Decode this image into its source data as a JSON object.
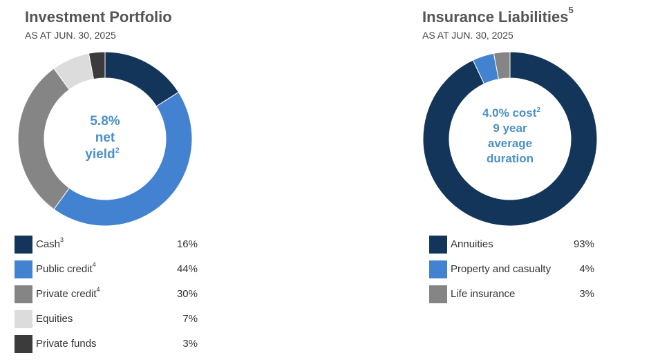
{
  "colors": {
    "dark_navy": "#13355a",
    "blue": "#4382d0",
    "gray": "#858585",
    "light_gray": "#dcdcdc",
    "charcoal": "#3b3b3b",
    "center_text": "#4a90c8",
    "title": "#555555"
  },
  "chart_data": [
    {
      "type": "pie",
      "title": "Investment Portfolio",
      "subtitle": "AS AT JUN. 30, 2025",
      "center_label": {
        "line1": "5.8%",
        "line2": "net",
        "line3": "yield",
        "line3_sup": "2"
      },
      "slices": [
        {
          "label": "Cash",
          "sup": "3",
          "value": 16,
          "display": "16%",
          "color": "#13355a"
        },
        {
          "label": "Public credit",
          "sup": "4",
          "value": 44,
          "display": "44%",
          "color": "#4382d0"
        },
        {
          "label": "Private credit",
          "sup": "4",
          "value": 30,
          "display": "30%",
          "color": "#858585"
        },
        {
          "label": "Equities",
          "sup": "",
          "value": 7,
          "display": "7%",
          "color": "#dcdcdc"
        },
        {
          "label": "Private funds",
          "sup": "",
          "value": 3,
          "display": "3%",
          "color": "#3b3b3b"
        }
      ]
    },
    {
      "type": "pie",
      "title": "Insurance Liabilities",
      "title_sup": "5",
      "subtitle": "AS AT JUN. 30, 2025",
      "center_label": {
        "line1": "4.0% cost",
        "line1_sup": "2",
        "line2": "9 year",
        "line3": "average",
        "line4": "duration"
      },
      "slices": [
        {
          "label": "Annuities",
          "sup": "",
          "value": 93,
          "display": "93%",
          "color": "#13355a"
        },
        {
          "label": "Property and casualty",
          "sup": "",
          "value": 4,
          "display": "4%",
          "color": "#4382d0"
        },
        {
          "label": "Life insurance",
          "sup": "",
          "value": 3,
          "display": "3%",
          "color": "#858585"
        }
      ]
    }
  ]
}
